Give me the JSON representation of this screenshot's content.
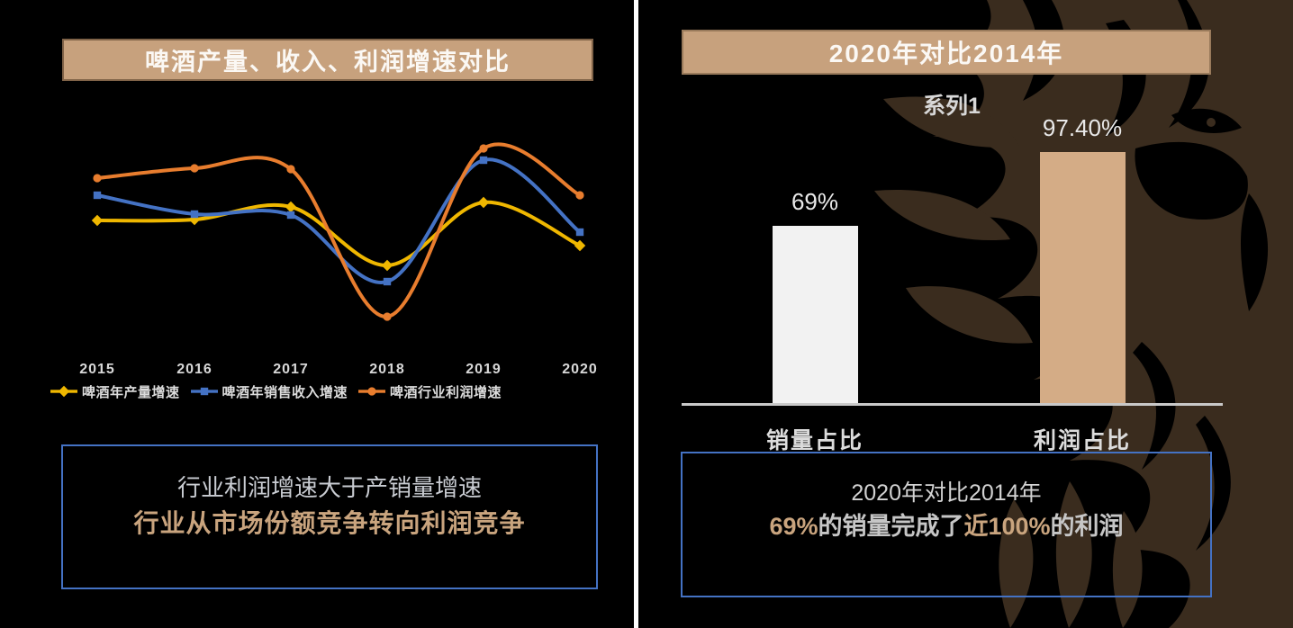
{
  "slide": {
    "background": "#000000",
    "divider_color": "#FFFFFF"
  },
  "palette": {
    "tan_banner": "#C7A17D",
    "tan_bar": "#D4AC86",
    "tan_text": "#C9A47E",
    "accent_blue": "#4472C4",
    "lion_brown": "#3A2C1E",
    "axis_gray": "#C9C9C9",
    "white_bar": "#F2F2F2"
  },
  "left_panel": {
    "banner": {
      "title": "啤酒产量、收入、利润增速对比"
    },
    "callout": {
      "line1": "行业利润增速大于产销量增速",
      "line2": "行业从市场份额竞争转向利润竞争"
    }
  },
  "right_panel": {
    "banner": {
      "title": "2020年对比2014年"
    },
    "callout": {
      "line1": "2020年对比2014年",
      "line2_segments": [
        {
          "text": "69%",
          "highlight": true
        },
        {
          "text": "的销量完成了",
          "highlight": false
        },
        {
          "text": "近100%",
          "highlight": true
        },
        {
          "text": "的利润",
          "highlight": false
        }
      ]
    }
  },
  "chart_data": [
    {
      "type": "line",
      "title": "啤酒产量、收入、利润增速对比",
      "categories": [
        "2015",
        "2016",
        "2017",
        "2018",
        "2019",
        "2020"
      ],
      "series": [
        {
          "name": "啤酒年产量增速",
          "color": "#EFB700",
          "marker": "diamond",
          "values": [
            12.5,
            12.6,
            14.0,
            7.5,
            14.5,
            9.7
          ]
        },
        {
          "name": "啤酒年销售收入增速",
          "color": "#4472C4",
          "marker": "square",
          "values": [
            15.3,
            13.2,
            13.1,
            5.7,
            19.2,
            11.2
          ]
        },
        {
          "name": "啤酒行业利润增速",
          "color": "#E87D2E",
          "marker": "circle",
          "values": [
            17.2,
            18.3,
            18.2,
            1.8,
            20.5,
            15.3
          ]
        }
      ],
      "xlabel": "",
      "ylabel": "",
      "ylim": [
        0,
        24
      ],
      "y_axis_visible": false,
      "grid": false,
      "legend_position": "bottom",
      "note": "y-axis unlabeled in source; values estimated from curve positions (relative growth-rate units)"
    },
    {
      "type": "bar",
      "title": "2020年对比2014年",
      "series_label": "系列1",
      "categories": [
        "销量占比",
        "利润占比"
      ],
      "values": [
        69,
        97.4
      ],
      "data_labels": [
        "69%",
        "97.40%"
      ],
      "bar_colors": [
        "#F2F2F2",
        "#D4AC86"
      ],
      "ylim": [
        0,
        100
      ],
      "y_axis_visible": false,
      "grid": false
    }
  ]
}
